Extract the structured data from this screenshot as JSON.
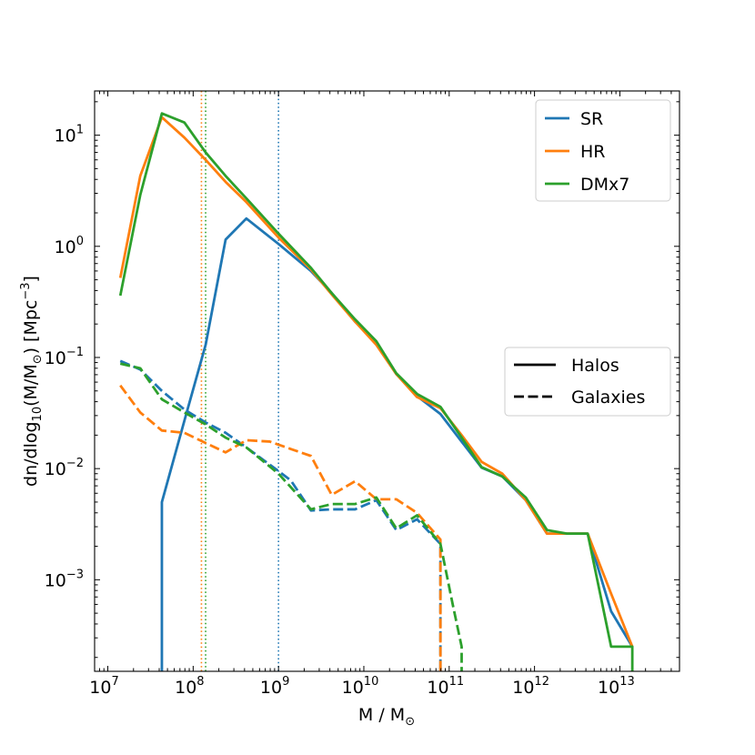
{
  "chart_data": {
    "type": "line",
    "title": "",
    "xlabel_main": "M / M",
    "xlabel_sub": "⊙",
    "ylabel_parts": {
      "a": "dn/dlog",
      "a_sub": "10",
      "b": "(M/M",
      "b_sub": "⊙",
      "c": ") [Mpc",
      "c_sup": "−3",
      "d": "]"
    },
    "xscale": "log",
    "yscale": "log",
    "xlim": [
      7000000,
      50000000000000
    ],
    "ylim": [
      0.00015,
      25
    ],
    "x_ticks": [
      {
        "value": 10000000,
        "base": "10",
        "exp": "7"
      },
      {
        "value": 100000000,
        "base": "10",
        "exp": "8"
      },
      {
        "value": 1000000000,
        "base": "10",
        "exp": "9"
      },
      {
        "value": 10000000000,
        "base": "10",
        "exp": "10"
      },
      {
        "value": 100000000000,
        "base": "10",
        "exp": "11"
      },
      {
        "value": 1000000000000,
        "base": "10",
        "exp": "12"
      },
      {
        "value": 10000000000000,
        "base": "10",
        "exp": "13"
      }
    ],
    "y_ticks": [
      {
        "value": 0.001,
        "base": "10",
        "exp": "−3"
      },
      {
        "value": 0.01,
        "base": "10",
        "exp": "−2"
      },
      {
        "value": 0.1,
        "base": "10",
        "exp": "−1"
      },
      {
        "value": 1,
        "base": "10",
        "exp": "0"
      },
      {
        "value": 10,
        "base": "10",
        "exp": "1"
      }
    ],
    "colors": {
      "SR": "#1f77b4",
      "HR": "#ff7f0e",
      "DMx7": "#2ca02c"
    },
    "series": [
      {
        "name": "SR Halos",
        "group": "SR",
        "style": "solid",
        "points": [
          [
            43000000,
            0.00015
          ],
          [
            43000000,
            0.005
          ],
          [
            80000000,
            0.028
          ],
          [
            140000000,
            0.13
          ],
          [
            240000000,
            1.15
          ],
          [
            420000000,
            1.78
          ],
          [
            1000000000,
            1.05
          ],
          [
            2400000000,
            0.6
          ],
          [
            4200000000,
            0.38
          ],
          [
            7900000000,
            0.21
          ],
          [
            14000000000,
            0.135
          ],
          [
            24000000000,
            0.071
          ],
          [
            42000000000,
            0.045
          ],
          [
            79000000000,
            0.031
          ],
          [
            140000000000,
            0.0175
          ],
          [
            240000000000,
            0.0102
          ],
          [
            420000000000,
            0.0085
          ],
          [
            790000000000,
            0.0052
          ],
          [
            1400000000000,
            0.0026
          ],
          [
            2400000000000,
            0.0026
          ],
          [
            4200000000000,
            0.0026
          ],
          [
            7900000000000,
            0.00052
          ],
          [
            14000000000000,
            0.00025
          ]
        ]
      },
      {
        "name": "HR Halos",
        "group": "HR",
        "style": "solid",
        "points": [
          [
            14000000,
            0.52
          ],
          [
            24000000,
            4.3
          ],
          [
            43000000,
            14.5
          ],
          [
            79000000,
            9.5
          ],
          [
            140000000,
            6.0
          ],
          [
            240000000,
            3.8
          ],
          [
            420000000,
            2.5
          ],
          [
            1000000000,
            1.2
          ],
          [
            2400000000,
            0.62
          ],
          [
            4200000000,
            0.37
          ],
          [
            7900000000,
            0.21
          ],
          [
            14000000000,
            0.13
          ],
          [
            24000000000,
            0.071
          ],
          [
            42000000000,
            0.044
          ],
          [
            79000000000,
            0.035
          ],
          [
            140000000000,
            0.02
          ],
          [
            240000000000,
            0.0115
          ],
          [
            420000000000,
            0.009
          ],
          [
            790000000000,
            0.0052
          ],
          [
            1400000000000,
            0.0026
          ],
          [
            2400000000000,
            0.0026
          ],
          [
            4200000000000,
            0.0026
          ],
          [
            7900000000000,
            0.00075
          ],
          [
            14000000000000,
            0.00025
          ]
        ]
      },
      {
        "name": "DMx7 Halos",
        "group": "DMx7",
        "style": "solid",
        "points": [
          [
            14000000,
            0.36
          ],
          [
            24000000,
            2.9
          ],
          [
            43000000,
            15.7
          ],
          [
            79000000,
            13.0
          ],
          [
            140000000,
            7.0
          ],
          [
            240000000,
            4.3
          ],
          [
            420000000,
            2.7
          ],
          [
            1000000000,
            1.3
          ],
          [
            2400000000,
            0.64
          ],
          [
            4200000000,
            0.38
          ],
          [
            7900000000,
            0.22
          ],
          [
            14000000000,
            0.14
          ],
          [
            24000000000,
            0.072
          ],
          [
            42000000000,
            0.047
          ],
          [
            79000000000,
            0.036
          ],
          [
            140000000000,
            0.019
          ],
          [
            240000000000,
            0.0103
          ],
          [
            420000000000,
            0.0085
          ],
          [
            790000000000,
            0.0055
          ],
          [
            1400000000000,
            0.0028
          ],
          [
            2400000000000,
            0.0026
          ],
          [
            4200000000000,
            0.0026
          ],
          [
            7900000000000,
            0.00025
          ],
          [
            14000000000000,
            0.00025
          ],
          [
            14000000000000,
            0.00015
          ]
        ]
      },
      {
        "name": "SR Galaxies",
        "group": "SR",
        "style": "dashed",
        "points": [
          [
            14000000,
            0.093
          ],
          [
            24000000,
            0.078
          ],
          [
            43000000,
            0.05
          ],
          [
            79000000,
            0.034
          ],
          [
            140000000,
            0.026
          ],
          [
            240000000,
            0.021
          ],
          [
            420000000,
            0.0155
          ],
          [
            1000000000,
            0.0095
          ],
          [
            1400000000,
            0.0078
          ],
          [
            2400000000,
            0.0042
          ],
          [
            4200000000,
            0.0043
          ],
          [
            7900000000,
            0.0043
          ],
          [
            14000000000,
            0.0052
          ],
          [
            24000000000,
            0.0028
          ],
          [
            42000000000,
            0.0035
          ],
          [
            79000000000,
            0.0021
          ],
          [
            79000000000,
            0.00015
          ]
        ]
      },
      {
        "name": "HR Galaxies",
        "group": "HR",
        "style": "dashed",
        "points": [
          [
            14000000,
            0.056
          ],
          [
            24000000,
            0.032
          ],
          [
            43000000,
            0.022
          ],
          [
            79000000,
            0.021
          ],
          [
            140000000,
            0.017
          ],
          [
            240000000,
            0.014
          ],
          [
            420000000,
            0.018
          ],
          [
            790000000,
            0.0175
          ],
          [
            1400000000,
            0.015
          ],
          [
            2400000000,
            0.013
          ],
          [
            4200000000,
            0.0058
          ],
          [
            7900000000,
            0.0077
          ],
          [
            14000000000,
            0.0053
          ],
          [
            24000000000,
            0.0053
          ],
          [
            42000000000,
            0.004
          ],
          [
            79000000000,
            0.0023
          ],
          [
            79000000000,
            0.00015
          ]
        ]
      },
      {
        "name": "DMx7 Galaxies",
        "group": "DMx7",
        "style": "dashed",
        "points": [
          [
            14000000,
            0.088
          ],
          [
            24000000,
            0.08
          ],
          [
            43000000,
            0.042
          ],
          [
            79000000,
            0.032
          ],
          [
            140000000,
            0.025
          ],
          [
            240000000,
            0.019
          ],
          [
            420000000,
            0.0155
          ],
          [
            1000000000,
            0.009
          ],
          [
            2400000000,
            0.0043
          ],
          [
            4200000000,
            0.0048
          ],
          [
            7900000000,
            0.0048
          ],
          [
            14000000000,
            0.0055
          ],
          [
            24000000000,
            0.0029
          ],
          [
            42000000000,
            0.0038
          ],
          [
            79000000000,
            0.0021
          ],
          [
            110000000000,
            0.0006
          ],
          [
            140000000000,
            0.00025
          ],
          [
            140000000000,
            0.00015
          ]
        ]
      }
    ],
    "vlines": [
      {
        "group": "HR",
        "x": 125000000
      },
      {
        "group": "DMx7",
        "x": 140000000
      },
      {
        "group": "SR",
        "x": 1000000000
      }
    ],
    "legend_sims": {
      "placement": "top-right",
      "entries": [
        {
          "label": "SR",
          "group": "SR"
        },
        {
          "label": "HR",
          "group": "HR"
        },
        {
          "label": "DMx7",
          "group": "DMx7"
        }
      ]
    },
    "legend_types": {
      "placement": "center-right",
      "entries": [
        {
          "label": "Halos",
          "style": "solid"
        },
        {
          "label": "Galaxies",
          "style": "dashed"
        }
      ]
    }
  }
}
